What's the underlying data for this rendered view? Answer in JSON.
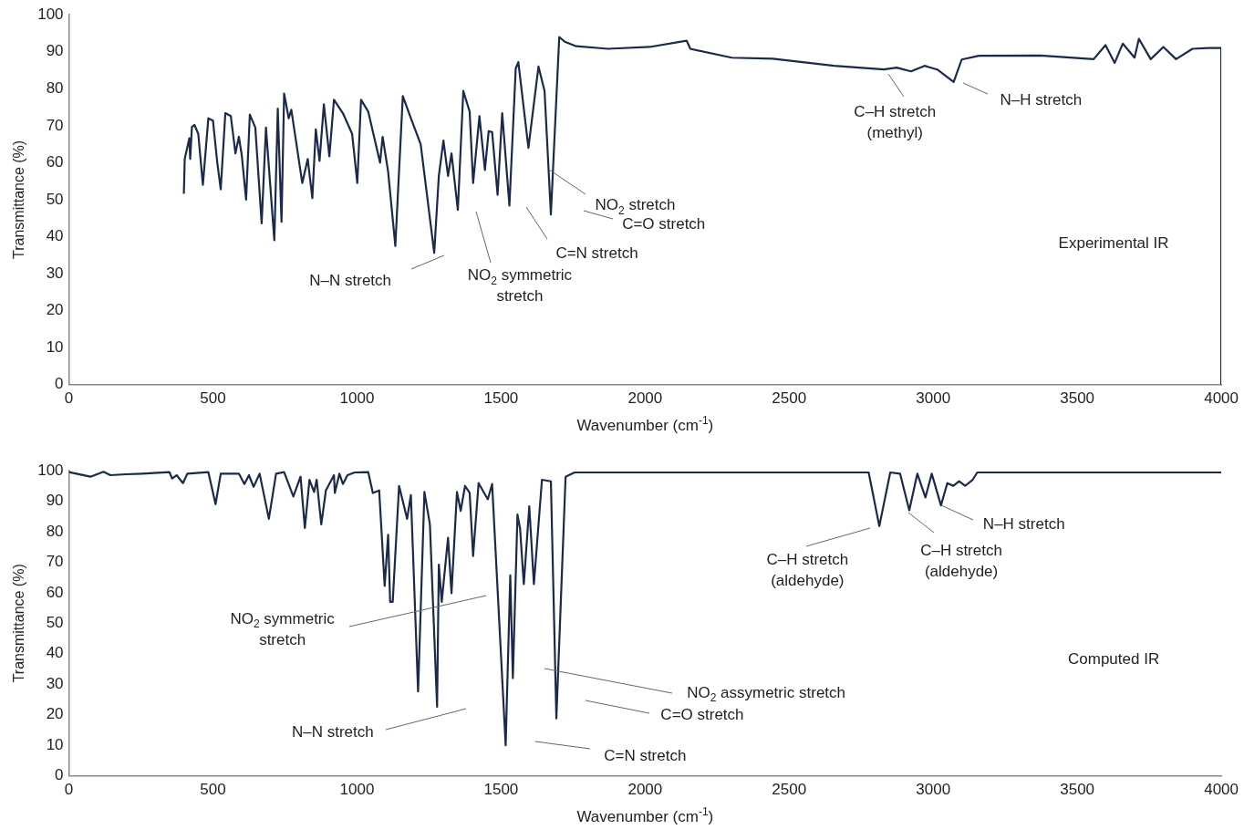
{
  "chart_data": [
    {
      "type": "line",
      "xlabel": "Wavenumber (cm$^{-1}$)",
      "ylabel": "Transmittance (%)",
      "xlim": [
        0,
        4000
      ],
      "xticks": [
        0,
        500,
        1000,
        1500,
        2000,
        2500,
        3000,
        3500,
        4000
      ],
      "ylim": [
        0,
        100
      ],
      "yticks": [
        0,
        10,
        20,
        30,
        40,
        50,
        60,
        70,
        80,
        90,
        100
      ],
      "grid": false,
      "legend": false,
      "marker": "none",
      "line_style": "solid",
      "series": [
        {
          "color": "#1b2a4a",
          "x": [
            399,
            402,
            418,
            421,
            427,
            436,
            449,
            465,
            484,
            500,
            515,
            527,
            543,
            562,
            578,
            590,
            600,
            615,
            628,
            647,
            669,
            684,
            713,
            725,
            738,
            747,
            763,
            772,
            810,
            829,
            845,
            857,
            870,
            885,
            904,
            920,
            951,
            983,
            1001,
            1014,
            1039,
            1080,
            1089,
            1108,
            1133,
            1159,
            1187,
            1221,
            1268,
            1284,
            1300,
            1316,
            1328,
            1350,
            1369,
            1391,
            1403,
            1425,
            1444,
            1457,
            1469,
            1488,
            1504,
            1529,
            1551,
            1560,
            1595,
            1630,
            1651,
            1673,
            1702,
            1721,
            1761,
            1871,
            2016,
            2144,
            2157,
            2301,
            2443,
            2656,
            2829,
            2873,
            2923,
            2970,
            3014,
            3071,
            3099,
            3159,
            3372,
            3557,
            3598,
            3630,
            3658,
            3699,
            3714,
            3755,
            3799,
            3843,
            3900,
            3956,
            4000,
            4000
          ],
          "values": [
            51.6,
            61,
            66.6,
            61,
            69.7,
            70.2,
            67.8,
            54,
            72,
            71.4,
            60,
            52.8,
            73.4,
            72.6,
            62.5,
            67,
            62,
            50,
            73,
            69.5,
            43.6,
            69.5,
            39,
            74.6,
            44,
            78.7,
            72,
            74.3,
            54.5,
            61,
            50.4,
            69,
            60.5,
            75.8,
            61.7,
            77,
            73.4,
            67.8,
            54.5,
            77,
            73.8,
            60,
            67,
            57.6,
            37.5,
            78,
            72,
            65,
            35.6,
            56.4,
            66,
            56.4,
            62.5,
            47.2,
            79.4,
            73.8,
            54.5,
            72.6,
            58,
            68.5,
            68.3,
            51.3,
            73.4,
            48.4,
            85.5,
            87.2,
            64,
            86,
            79.4,
            46,
            94,
            92.7,
            91.5,
            90.8,
            91.3,
            93,
            90.8,
            88.4,
            88.1,
            86.2,
            85.2,
            85.7,
            84.7,
            86.2,
            85.2,
            81.8,
            87.9,
            88.9,
            89,
            88,
            91.8,
            87,
            92.2,
            88.4,
            93.5,
            88,
            91.3,
            88,
            90.8,
            91,
            91,
            0
          ]
        }
      ],
      "annotations": [
        "N–N stretch",
        "NO$_{2}$ symmetric\nstretch",
        "C=N stretch",
        {
          "text": "NO$_{2}$ stretch",
          "x": 1665,
          "y": 58
        },
        "C=O stretch",
        "C–H stretch\n(methyl)",
        "N–H stretch",
        "Experimental IR"
      ]
    },
    {
      "type": "line",
      "xlabel": "Wavenumber (cm$^{-1}$)",
      "ylabel": "Transmittance (%)",
      "xlim": [
        0,
        4000
      ],
      "xticks": [
        0,
        500,
        1000,
        1500,
        2000,
        2500,
        3000,
        3500,
        4000
      ],
      "ylim": [
        0,
        100
      ],
      "yticks": [
        0,
        10,
        20,
        30,
        40,
        50,
        60,
        70,
        80,
        90,
        100
      ],
      "grid": false,
      "legend": false,
      "marker": "none",
      "line_style": "solid",
      "series": [
        {
          "color": "#1b2a4a",
          "x": [
            0,
            75,
            120,
            144,
            198,
            254,
            349,
            358,
            374,
            396,
            411,
            484,
            509,
            527,
            590,
            609,
            625,
            641,
            662,
            694,
            719,
            747,
            779,
            804,
            819,
            835,
            851,
            860,
            876,
            892,
            920,
            923,
            939,
            951,
            967,
            992,
            1039,
            1055,
            1077,
            1096,
            1108,
            1115,
            1124,
            1146,
            1174,
            1187,
            1212,
            1234,
            1253,
            1278,
            1284,
            1294,
            1316,
            1328,
            1347,
            1360,
            1375,
            1391,
            1403,
            1422,
            1454,
            1469,
            1516,
            1532,
            1541,
            1557,
            1566,
            1579,
            1598,
            1614,
            1642,
            1673,
            1692,
            1724,
            1755,
            2776,
            2813,
            2851,
            2885,
            2917,
            2945,
            2973,
            2995,
            3027,
            3049,
            3070,
            3090,
            3111,
            3137,
            3153,
            4000
          ],
          "values": [
            99.5,
            98,
            99.6,
            98.5,
            98.8,
            99,
            99.5,
            97.4,
            98.5,
            95.9,
            99,
            99.5,
            89,
            99,
            99,
            95.6,
            98.5,
            94.7,
            99,
            84.2,
            99,
            99.5,
            91.5,
            98,
            81.2,
            97,
            93,
            97,
            82.4,
            93.5,
            98.5,
            92.7,
            99,
            95.6,
            98.5,
            99.4,
            99.5,
            92.7,
            93.5,
            62.2,
            79,
            57,
            57,
            95,
            84.2,
            92,
            27.6,
            93,
            82.4,
            22.6,
            69.2,
            57,
            78,
            59.8,
            93,
            86.8,
            95,
            92.7,
            72,
            95.9,
            90.6,
            95.6,
            10,
            65.7,
            32,
            85.6,
            81,
            62.8,
            88.3,
            62.8,
            97,
            96.5,
            18.8,
            98,
            99.4,
            99.4,
            81.8,
            99.4,
            99,
            87,
            99,
            91.2,
            99,
            88.6,
            95.9,
            95,
            96.5,
            95,
            97,
            99.4,
            99.4
          ]
        }
      ],
      "annotations": [
        "NO$_{2}$ symmetric\nstretch",
        "N–N stretch",
        "C=N stretch",
        "NO$_{2}$ assymetric stretch",
        "C=O stretch",
        "C–H stretch\n(aldehyde)",
        "C–H stretch\n(aldehyde)",
        "N–H stretch",
        "Computed IR"
      ]
    }
  ]
}
